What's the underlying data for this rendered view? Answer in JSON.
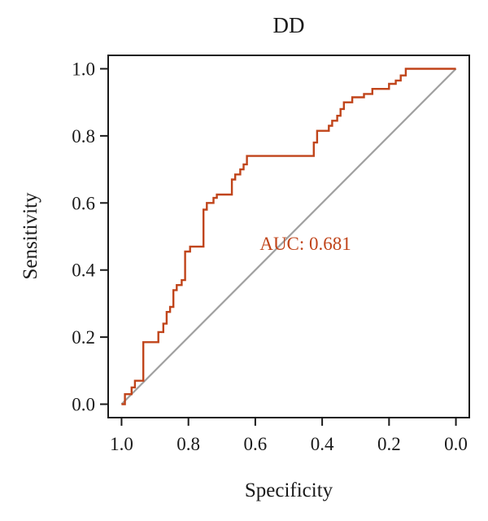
{
  "chart_data": {
    "type": "line",
    "title": "DD",
    "xlabel": "Specificity",
    "ylabel": "Sensitivity",
    "x_reversed": true,
    "xlim": [
      1.04,
      -0.04
    ],
    "ylim": [
      -0.04,
      1.04
    ],
    "x_ticks": [
      "1.0",
      "0.8",
      "0.6",
      "0.4",
      "0.2",
      "0.0"
    ],
    "y_ticks": [
      "0.0",
      "0.2",
      "0.4",
      "0.6",
      "0.8",
      "1.0"
    ],
    "grid": false,
    "series": [
      {
        "color": "#c0441a",
        "points": [
          [
            1.0,
            0.0
          ],
          [
            0.99,
            0.0
          ],
          [
            0.99,
            0.03
          ],
          [
            0.97,
            0.03
          ],
          [
            0.97,
            0.05
          ],
          [
            0.96,
            0.05
          ],
          [
            0.96,
            0.07
          ],
          [
            0.935,
            0.07
          ],
          [
            0.935,
            0.185
          ],
          [
            0.89,
            0.185
          ],
          [
            0.89,
            0.215
          ],
          [
            0.875,
            0.215
          ],
          [
            0.875,
            0.24
          ],
          [
            0.865,
            0.24
          ],
          [
            0.865,
            0.275
          ],
          [
            0.855,
            0.275
          ],
          [
            0.855,
            0.29
          ],
          [
            0.845,
            0.29
          ],
          [
            0.845,
            0.34
          ],
          [
            0.835,
            0.34
          ],
          [
            0.835,
            0.355
          ],
          [
            0.82,
            0.355
          ],
          [
            0.82,
            0.37
          ],
          [
            0.81,
            0.37
          ],
          [
            0.81,
            0.455
          ],
          [
            0.795,
            0.455
          ],
          [
            0.795,
            0.47
          ],
          [
            0.755,
            0.47
          ],
          [
            0.755,
            0.58
          ],
          [
            0.745,
            0.58
          ],
          [
            0.745,
            0.6
          ],
          [
            0.725,
            0.6
          ],
          [
            0.725,
            0.615
          ],
          [
            0.715,
            0.615
          ],
          [
            0.715,
            0.625
          ],
          [
            0.67,
            0.625
          ],
          [
            0.67,
            0.67
          ],
          [
            0.66,
            0.67
          ],
          [
            0.66,
            0.685
          ],
          [
            0.645,
            0.685
          ],
          [
            0.645,
            0.7
          ],
          [
            0.635,
            0.7
          ],
          [
            0.635,
            0.715
          ],
          [
            0.625,
            0.715
          ],
          [
            0.625,
            0.74
          ],
          [
            0.425,
            0.74
          ],
          [
            0.425,
            0.78
          ],
          [
            0.415,
            0.78
          ],
          [
            0.415,
            0.815
          ],
          [
            0.38,
            0.815
          ],
          [
            0.38,
            0.83
          ],
          [
            0.37,
            0.83
          ],
          [
            0.37,
            0.845
          ],
          [
            0.355,
            0.845
          ],
          [
            0.355,
            0.86
          ],
          [
            0.345,
            0.86
          ],
          [
            0.345,
            0.88
          ],
          [
            0.335,
            0.88
          ],
          [
            0.335,
            0.9
          ],
          [
            0.31,
            0.9
          ],
          [
            0.31,
            0.915
          ],
          [
            0.275,
            0.915
          ],
          [
            0.275,
            0.925
          ],
          [
            0.25,
            0.925
          ],
          [
            0.25,
            0.94
          ],
          [
            0.2,
            0.94
          ],
          [
            0.2,
            0.955
          ],
          [
            0.18,
            0.955
          ],
          [
            0.18,
            0.965
          ],
          [
            0.165,
            0.965
          ],
          [
            0.165,
            0.98
          ],
          [
            0.15,
            0.98
          ],
          [
            0.15,
            1.0
          ],
          [
            0.0,
            1.0
          ]
        ]
      }
    ],
    "diagonal": {
      "color": "#a0a0a0",
      "points": [
        [
          1.0,
          0.0
        ],
        [
          0.0,
          1.0
        ]
      ]
    },
    "annotations": [
      {
        "text": "AUC: 0.681",
        "x": 0.45,
        "y": 0.46,
        "color": "#c0441a"
      }
    ]
  }
}
